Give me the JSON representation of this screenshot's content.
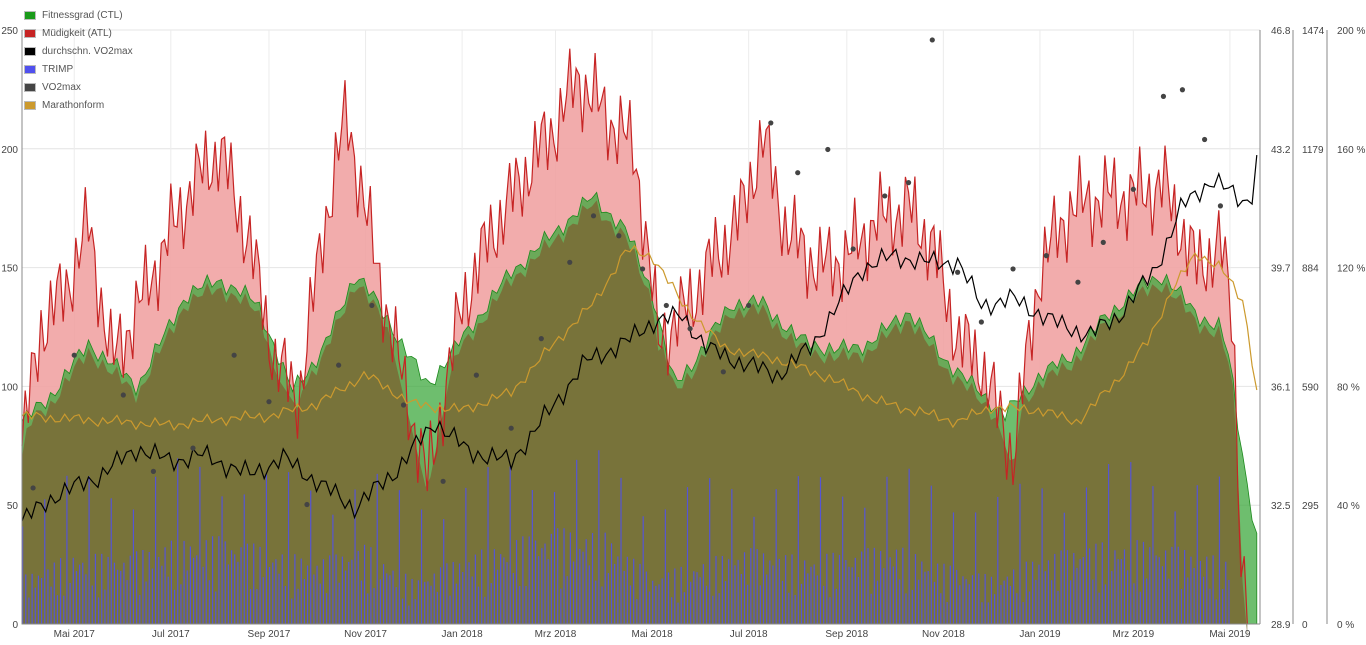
{
  "chart_data": {
    "type": "area",
    "legend_position": "top-left",
    "grid": true,
    "x_start": "2017-03-29",
    "x_end": "2019-05-20",
    "x_ticks": [
      {
        "date": "2017-05-01",
        "label": "Mai 2017"
      },
      {
        "date": "2017-07-01",
        "label": "Jul 2017"
      },
      {
        "date": "2017-09-01",
        "label": "Sep 2017"
      },
      {
        "date": "2017-11-01",
        "label": "Nov 2017"
      },
      {
        "date": "2018-01-01",
        "label": "Jan 2018"
      },
      {
        "date": "2018-03-01",
        "label": "Mrz 2018"
      },
      {
        "date": "2018-05-01",
        "label": "Mai 2018"
      },
      {
        "date": "2018-07-01",
        "label": "Jul 2018"
      },
      {
        "date": "2018-09-01",
        "label": "Sep 2018"
      },
      {
        "date": "2018-11-01",
        "label": "Nov 2018"
      },
      {
        "date": "2019-01-01",
        "label": "Jan 2019"
      },
      {
        "date": "2019-03-01",
        "label": "Mrz 2019"
      },
      {
        "date": "2019-05-01",
        "label": "Mai 2019"
      }
    ],
    "y_left": {
      "min": 0,
      "max": 250,
      "ticks": [
        "0",
        "50",
        "100",
        "150",
        "200",
        "250"
      ]
    },
    "y_vo2": {
      "min": 28.9,
      "max": 46.8,
      "ticks": [
        "28.9",
        "32.5",
        "36.1",
        "39.7",
        "43.2",
        "46.8"
      ]
    },
    "y_trimp": {
      "min": 0,
      "max": 1474,
      "ticks": [
        "0",
        "295",
        "590",
        "884",
        "1179",
        "1474"
      ]
    },
    "y_percent": {
      "min": 0,
      "max": 200,
      "ticks": [
        "0 %",
        "40 %",
        "80 %",
        "120 %",
        "160 %",
        "200 %"
      ]
    },
    "series": [
      {
        "name": "Fitnessgrad (CTL)",
        "color": "#1a9a1a",
        "values": [
          [
            "2017-03-29",
            85
          ],
          [
            "2017-04-15",
            95
          ],
          [
            "2017-05-10",
            118
          ],
          [
            "2017-06-10",
            100
          ],
          [
            "2017-07-10",
            138
          ],
          [
            "2017-07-31",
            145
          ],
          [
            "2017-08-25",
            135
          ],
          [
            "2017-09-15",
            98
          ],
          [
            "2017-10-05",
            115
          ],
          [
            "2017-10-26",
            148
          ],
          [
            "2017-11-15",
            128
          ],
          [
            "2017-12-10",
            100
          ],
          [
            "2018-01-01",
            120
          ],
          [
            "2018-02-01",
            148
          ],
          [
            "2018-03-01",
            165
          ],
          [
            "2018-03-25",
            180
          ],
          [
            "2018-04-15",
            165
          ],
          [
            "2018-05-01",
            140
          ],
          [
            "2018-05-15",
            100
          ],
          [
            "2018-06-01",
            115
          ],
          [
            "2018-06-20",
            135
          ],
          [
            "2018-07-10",
            135
          ],
          [
            "2018-08-01",
            120
          ],
          [
            "2018-08-25",
            115
          ],
          [
            "2018-09-15",
            118
          ],
          [
            "2018-10-10",
            132
          ],
          [
            "2018-11-01",
            112
          ],
          [
            "2018-11-20",
            100
          ],
          [
            "2018-12-10",
            88
          ],
          [
            "2019-01-01",
            105
          ],
          [
            "2019-01-20",
            112
          ],
          [
            "2019-02-10",
            128
          ],
          [
            "2019-03-01",
            140
          ],
          [
            "2019-03-20",
            147
          ],
          [
            "2019-04-10",
            130
          ],
          [
            "2019-04-25",
            125
          ],
          [
            "2019-05-01",
            110
          ],
          [
            "2019-05-08",
            75
          ],
          [
            "2019-05-20",
            28
          ]
        ]
      },
      {
        "name": "Müdigkeit (ATL)",
        "color": "#c62424",
        "values": [
          [
            "2017-03-29",
            75
          ],
          [
            "2017-04-10",
            125
          ],
          [
            "2017-04-25",
            140
          ],
          [
            "2017-05-10",
            168
          ],
          [
            "2017-05-25",
            110
          ],
          [
            "2017-06-15",
            140
          ],
          [
            "2017-07-01",
            165
          ],
          [
            "2017-07-15",
            185
          ],
          [
            "2017-08-01",
            200
          ],
          [
            "2017-08-20",
            160
          ],
          [
            "2017-09-05",
            110
          ],
          [
            "2017-09-20",
            95
          ],
          [
            "2017-10-05",
            165
          ],
          [
            "2017-10-20",
            215
          ],
          [
            "2017-11-05",
            160
          ],
          [
            "2017-11-20",
            115
          ],
          [
            "2017-12-10",
            60
          ],
          [
            "2018-01-01",
            135
          ],
          [
            "2018-01-20",
            165
          ],
          [
            "2018-02-10",
            190
          ],
          [
            "2018-03-01",
            210
          ],
          [
            "2018-03-15",
            230
          ],
          [
            "2018-04-01",
            215
          ],
          [
            "2018-04-20",
            200
          ],
          [
            "2018-05-05",
            120
          ],
          [
            "2018-05-20",
            130
          ],
          [
            "2018-06-10",
            155
          ],
          [
            "2018-06-25",
            170
          ],
          [
            "2018-07-10",
            205
          ],
          [
            "2018-07-25",
            165
          ],
          [
            "2018-08-15",
            150
          ],
          [
            "2018-09-01",
            155
          ],
          [
            "2018-09-20",
            170
          ],
          [
            "2018-10-10",
            175
          ],
          [
            "2018-10-25",
            160
          ],
          [
            "2018-11-10",
            120
          ],
          [
            "2018-11-25",
            110
          ],
          [
            "2018-12-15",
            70
          ],
          [
            "2019-01-01",
            150
          ],
          [
            "2019-01-20",
            175
          ],
          [
            "2019-02-10",
            180
          ],
          [
            "2019-03-01",
            180
          ],
          [
            "2019-03-20",
            185
          ],
          [
            "2019-04-10",
            150
          ],
          [
            "2019-04-25",
            160
          ],
          [
            "2019-05-03",
            130
          ],
          [
            "2019-05-08",
            30
          ],
          [
            "2019-05-12",
            0
          ]
        ]
      },
      {
        "name": "durchschn. VO2max",
        "color": "#000000",
        "values": [
          [
            "2017-03-29",
            32.0
          ],
          [
            "2017-04-20",
            32.8
          ],
          [
            "2017-05-15",
            33.3
          ],
          [
            "2017-06-10",
            34.2
          ],
          [
            "2017-07-01",
            33.8
          ],
          [
            "2017-07-20",
            34.0
          ],
          [
            "2017-08-20",
            33.4
          ],
          [
            "2017-09-10",
            33.9
          ],
          [
            "2017-10-01",
            33.2
          ],
          [
            "2017-10-25",
            32.4
          ],
          [
            "2017-11-20",
            33.5
          ],
          [
            "2017-12-15",
            35.0
          ],
          [
            "2018-01-05",
            34.1
          ],
          [
            "2018-02-01",
            33.8
          ],
          [
            "2018-02-25",
            35.3
          ],
          [
            "2018-03-20",
            36.8
          ],
          [
            "2018-04-15",
            37.4
          ],
          [
            "2018-05-01",
            38.0
          ],
          [
            "2018-05-20",
            38.2
          ],
          [
            "2018-06-05",
            37.2
          ],
          [
            "2018-06-25",
            36.8
          ],
          [
            "2018-07-20",
            36.4
          ],
          [
            "2018-08-10",
            37.3
          ],
          [
            "2018-08-25",
            38.4
          ],
          [
            "2018-09-10",
            39.6
          ],
          [
            "2018-10-01",
            40.0
          ],
          [
            "2018-10-20",
            39.8
          ],
          [
            "2018-11-10",
            39.8
          ],
          [
            "2018-11-25",
            38.5
          ],
          [
            "2018-12-15",
            38.7
          ],
          [
            "2019-01-10",
            38.0
          ],
          [
            "2019-02-01",
            37.6
          ],
          [
            "2019-02-20",
            38.2
          ],
          [
            "2019-03-15",
            39.6
          ],
          [
            "2019-04-01",
            41.5
          ],
          [
            "2019-04-20",
            42.3
          ],
          [
            "2019-05-10",
            41.6
          ],
          [
            "2019-05-17",
            42.0
          ],
          [
            "2019-05-20",
            44.5
          ]
        ]
      },
      {
        "name": "TRIMP",
        "color": "#5050ee",
        "values": [
          [
            "2017-03-29",
            120
          ],
          [
            "2017-05-01",
            180
          ],
          [
            "2017-06-01",
            170
          ],
          [
            "2017-07-01",
            210
          ],
          [
            "2017-08-01",
            220
          ],
          [
            "2017-09-01",
            190
          ],
          [
            "2017-10-01",
            160
          ],
          [
            "2017-11-01",
            200
          ],
          [
            "2017-12-01",
            110
          ],
          [
            "2018-01-01",
            170
          ],
          [
            "2018-02-01",
            210
          ],
          [
            "2018-03-01",
            240
          ],
          [
            "2018-04-01",
            230
          ],
          [
            "2018-05-01",
            120
          ],
          [
            "2018-06-01",
            160
          ],
          [
            "2018-07-01",
            190
          ],
          [
            "2018-08-01",
            170
          ],
          [
            "2018-09-01",
            180
          ],
          [
            "2018-10-01",
            200
          ],
          [
            "2018-11-01",
            150
          ],
          [
            "2018-12-01",
            120
          ],
          [
            "2019-01-01",
            170
          ],
          [
            "2019-02-01",
            200
          ],
          [
            "2019-03-01",
            210
          ],
          [
            "2019-04-01",
            190
          ],
          [
            "2019-05-01",
            160
          ]
        ]
      },
      {
        "name": "VO2max",
        "color": "#444444",
        "values": [
          [
            "2017-04-05",
            33.0
          ],
          [
            "2017-05-01",
            37.0
          ],
          [
            "2017-06-01",
            35.8
          ],
          [
            "2017-06-20",
            33.5
          ],
          [
            "2017-07-15",
            34.2
          ],
          [
            "2017-08-10",
            37.0
          ],
          [
            "2017-09-01",
            35.6
          ],
          [
            "2017-09-25",
            32.5
          ],
          [
            "2017-10-15",
            36.7
          ],
          [
            "2017-11-05",
            38.5
          ],
          [
            "2017-11-25",
            35.5
          ],
          [
            "2017-12-20",
            33.2
          ],
          [
            "2018-01-10",
            36.4
          ],
          [
            "2018-02-01",
            34.8
          ],
          [
            "2018-02-20",
            37.5
          ],
          [
            "2018-03-10",
            39.8
          ],
          [
            "2018-03-25",
            41.2
          ],
          [
            "2018-04-10",
            40.6
          ],
          [
            "2018-04-25",
            39.6
          ],
          [
            "2018-05-10",
            38.5
          ],
          [
            "2018-05-25",
            37.8
          ],
          [
            "2018-06-15",
            36.5
          ],
          [
            "2018-07-01",
            38.5
          ],
          [
            "2018-07-15",
            44.0
          ],
          [
            "2018-08-01",
            42.5
          ],
          [
            "2018-08-20",
            43.2
          ],
          [
            "2018-09-05",
            40.2
          ],
          [
            "2018-09-25",
            41.8
          ],
          [
            "2018-10-10",
            42.2
          ],
          [
            "2018-10-25",
            46.5
          ],
          [
            "2018-11-10",
            39.5
          ],
          [
            "2018-11-25",
            38.0
          ],
          [
            "2018-12-15",
            39.6
          ],
          [
            "2019-01-05",
            40.0
          ],
          [
            "2019-01-25",
            39.2
          ],
          [
            "2019-02-10",
            40.4
          ],
          [
            "2019-03-01",
            42.0
          ],
          [
            "2019-03-20",
            44.8
          ],
          [
            "2019-04-01",
            45.0
          ],
          [
            "2019-04-15",
            43.5
          ],
          [
            "2019-04-25",
            41.5
          ]
        ]
      },
      {
        "name": "Marathonform",
        "color": "#cc9a2e",
        "values": [
          [
            "2017-03-29",
            70
          ],
          [
            "2017-05-01",
            69
          ],
          [
            "2017-06-01",
            68
          ],
          [
            "2017-07-01",
            67
          ],
          [
            "2017-08-01",
            69
          ],
          [
            "2017-09-01",
            70
          ],
          [
            "2017-10-01",
            74
          ],
          [
            "2017-11-01",
            84
          ],
          [
            "2017-12-01",
            74
          ],
          [
            "2018-01-01",
            72
          ],
          [
            "2018-02-01",
            78
          ],
          [
            "2018-03-01",
            95
          ],
          [
            "2018-03-25",
            108
          ],
          [
            "2018-04-15",
            126
          ],
          [
            "2018-05-01",
            124
          ],
          [
            "2018-05-20",
            108
          ],
          [
            "2018-06-15",
            93
          ],
          [
            "2018-07-20",
            89
          ],
          [
            "2018-08-20",
            83
          ],
          [
            "2018-09-20",
            75
          ],
          [
            "2018-10-20",
            71
          ],
          [
            "2018-11-10",
            68
          ],
          [
            "2018-12-01",
            73
          ],
          [
            "2019-01-01",
            72
          ],
          [
            "2019-01-25",
            68
          ],
          [
            "2019-02-20",
            83
          ],
          [
            "2019-03-10",
            95
          ],
          [
            "2019-03-25",
            112
          ],
          [
            "2019-04-10",
            125
          ],
          [
            "2019-04-25",
            120
          ],
          [
            "2019-05-10",
            108
          ],
          [
            "2019-05-20",
            70
          ]
        ]
      }
    ]
  }
}
